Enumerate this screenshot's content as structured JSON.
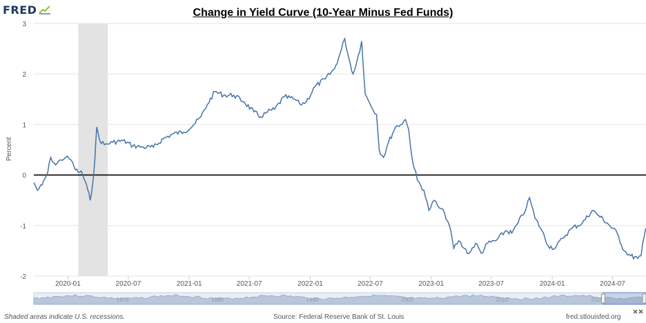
{
  "brand": {
    "logo_text": "FRED",
    "logo_icon": "trend-line-icon",
    "line_color": "#4572a7"
  },
  "chart_data": {
    "type": "line",
    "title": "Change in Yield Curve (10-Year Minus Fed Funds)",
    "ylabel": "Percent",
    "xlabel": "",
    "ylim": [
      -2,
      3
    ],
    "xlim": [
      "2019-09-20",
      "2024-10-10"
    ],
    "yticks": [
      "-2",
      "-1",
      "0",
      "1",
      "2",
      "3"
    ],
    "xticks": [
      {
        "date": "2020-01-01",
        "label": "2020-01"
      },
      {
        "date": "2020-07-01",
        "label": "2020-07"
      },
      {
        "date": "2021-01-01",
        "label": "2021-01"
      },
      {
        "date": "2021-07-01",
        "label": "2021-07"
      },
      {
        "date": "2022-01-01",
        "label": "2022-01"
      },
      {
        "date": "2022-07-01",
        "label": "2022-07"
      },
      {
        "date": "2023-01-01",
        "label": "2023-01"
      },
      {
        "date": "2023-07-01",
        "label": "2023-07"
      },
      {
        "date": "2024-01-01",
        "label": "2024-01"
      },
      {
        "date": "2024-07-01",
        "label": "2024-07"
      }
    ],
    "recession": {
      "start": "2020-02-01",
      "end": "2020-04-30",
      "color": "#e3e3e3"
    },
    "zero_line": 0,
    "grid": true,
    "series": [
      {
        "points": [
          [
            "2019-09-20",
            -0.15
          ],
          [
            "2019-10-01",
            -0.3
          ],
          [
            "2019-10-15",
            -0.2
          ],
          [
            "2019-11-01",
            0.05
          ],
          [
            "2019-11-10",
            0.35
          ],
          [
            "2019-11-25",
            0.2
          ],
          [
            "2019-12-10",
            0.3
          ],
          [
            "2019-12-25",
            0.35
          ],
          [
            "2020-01-10",
            0.3
          ],
          [
            "2020-01-20",
            0.15
          ],
          [
            "2020-02-01",
            0.05
          ],
          [
            "2020-02-10",
            0.08
          ],
          [
            "2020-02-20",
            -0.1
          ],
          [
            "2020-03-01",
            -0.3
          ],
          [
            "2020-03-08",
            -0.5
          ],
          [
            "2020-03-15",
            -0.2
          ],
          [
            "2020-03-22",
            0.3
          ],
          [
            "2020-03-28",
            0.95
          ],
          [
            "2020-04-05",
            0.7
          ],
          [
            "2020-04-20",
            0.6
          ],
          [
            "2020-05-15",
            0.65
          ],
          [
            "2020-06-15",
            0.68
          ],
          [
            "2020-07-15",
            0.58
          ],
          [
            "2020-08-15",
            0.55
          ],
          [
            "2020-09-15",
            0.55
          ],
          [
            "2020-10-15",
            0.72
          ],
          [
            "2020-11-15",
            0.82
          ],
          [
            "2020-12-15",
            0.85
          ],
          [
            "2021-01-15",
            1.0
          ],
          [
            "2021-02-05",
            1.15
          ],
          [
            "2021-02-25",
            1.4
          ],
          [
            "2021-03-19",
            1.65
          ],
          [
            "2021-04-15",
            1.58
          ],
          [
            "2021-05-15",
            1.58
          ],
          [
            "2021-06-15",
            1.45
          ],
          [
            "2021-07-15",
            1.25
          ],
          [
            "2021-08-05",
            1.15
          ],
          [
            "2021-08-25",
            1.25
          ],
          [
            "2021-09-15",
            1.3
          ],
          [
            "2021-10-15",
            1.55
          ],
          [
            "2021-11-15",
            1.5
          ],
          [
            "2021-12-01",
            1.4
          ],
          [
            "2021-12-20",
            1.45
          ],
          [
            "2022-01-15",
            1.75
          ],
          [
            "2022-02-15",
            1.9
          ],
          [
            "2022-03-15",
            2.1
          ],
          [
            "2022-04-01",
            2.4
          ],
          [
            "2022-04-15",
            2.7
          ],
          [
            "2022-04-28",
            2.3
          ],
          [
            "2022-05-10",
            2.0
          ],
          [
            "2022-05-20",
            2.2
          ],
          [
            "2022-06-05",
            2.65
          ],
          [
            "2022-06-16",
            1.6
          ],
          [
            "2022-07-01",
            1.4
          ],
          [
            "2022-07-20",
            1.2
          ],
          [
            "2022-07-28",
            0.5
          ],
          [
            "2022-08-10",
            0.35
          ],
          [
            "2022-08-25",
            0.65
          ],
          [
            "2022-09-15",
            0.95
          ],
          [
            "2022-10-01",
            1.0
          ],
          [
            "2022-10-15",
            1.1
          ],
          [
            "2022-10-25",
            0.9
          ],
          [
            "2022-11-05",
            0.3
          ],
          [
            "2022-11-20",
            -0.1
          ],
          [
            "2022-12-10",
            -0.3
          ],
          [
            "2022-12-25",
            -0.7
          ],
          [
            "2023-01-10",
            -0.5
          ],
          [
            "2023-01-25",
            -0.65
          ],
          [
            "2023-02-10",
            -0.75
          ],
          [
            "2023-02-25",
            -1.0
          ],
          [
            "2023-03-10",
            -1.45
          ],
          [
            "2023-03-25",
            -1.3
          ],
          [
            "2023-04-10",
            -1.45
          ],
          [
            "2023-04-25",
            -1.55
          ],
          [
            "2023-05-15",
            -1.35
          ],
          [
            "2023-06-01",
            -1.55
          ],
          [
            "2023-06-20",
            -1.35
          ],
          [
            "2023-07-15",
            -1.3
          ],
          [
            "2023-08-15",
            -1.1
          ],
          [
            "2023-09-01",
            -1.15
          ],
          [
            "2023-09-20",
            -0.95
          ],
          [
            "2023-10-15",
            -0.65
          ],
          [
            "2023-10-25",
            -0.45
          ],
          [
            "2023-11-10",
            -0.85
          ],
          [
            "2023-12-01",
            -1.1
          ],
          [
            "2023-12-20",
            -1.4
          ],
          [
            "2024-01-10",
            -1.45
          ],
          [
            "2024-02-01",
            -1.25
          ],
          [
            "2024-03-01",
            -1.05
          ],
          [
            "2024-04-01",
            -0.95
          ],
          [
            "2024-05-01",
            -0.7
          ],
          [
            "2024-05-20",
            -0.8
          ],
          [
            "2024-06-15",
            -0.95
          ],
          [
            "2024-07-15",
            -1.15
          ],
          [
            "2024-08-05",
            -1.5
          ],
          [
            "2024-08-25",
            -1.6
          ],
          [
            "2024-09-15",
            -1.65
          ],
          [
            "2024-09-25",
            -1.6
          ],
          [
            "2024-10-05",
            -1.2
          ],
          [
            "2024-10-10",
            -1.05
          ]
        ]
      }
    ]
  },
  "navigator": {
    "labels": [
      {
        "text": "1970",
        "pos": 0.145
      },
      {
        "text": "1980",
        "pos": 0.3
      },
      {
        "text": "1990",
        "pos": 0.455
      },
      {
        "text": "2000",
        "pos": 0.61
      },
      {
        "text": "2010",
        "pos": 0.765
      },
      {
        "text": "2020",
        "pos": 0.92
      }
    ],
    "window": [
      0.93,
      1.0
    ]
  },
  "footer": {
    "note": "Shaded areas indicate U.S. recessions.",
    "source": "Source: Federal Reserve Bank of St. Louis",
    "url": "fred.stlouisfed.org"
  }
}
